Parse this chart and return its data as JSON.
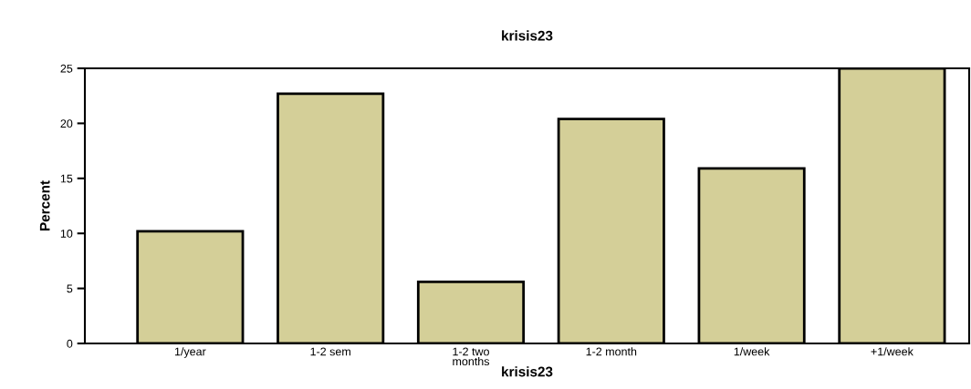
{
  "chart_data": {
    "type": "bar",
    "title": "krisis23",
    "xlabel": "krisis23",
    "ylabel": "Percent",
    "categories": [
      "1/year",
      "1-2 sem",
      "1-2 two\nmonths",
      "1-2 month",
      "1/week",
      "+1/week"
    ],
    "values": [
      10.2,
      22.7,
      5.6,
      20.4,
      15.9,
      25.0
    ],
    "color": "#d4cf98",
    "ylim": [
      0,
      25
    ],
    "yticks": [
      0,
      5,
      10,
      15,
      20,
      25
    ],
    "grid": false
  }
}
